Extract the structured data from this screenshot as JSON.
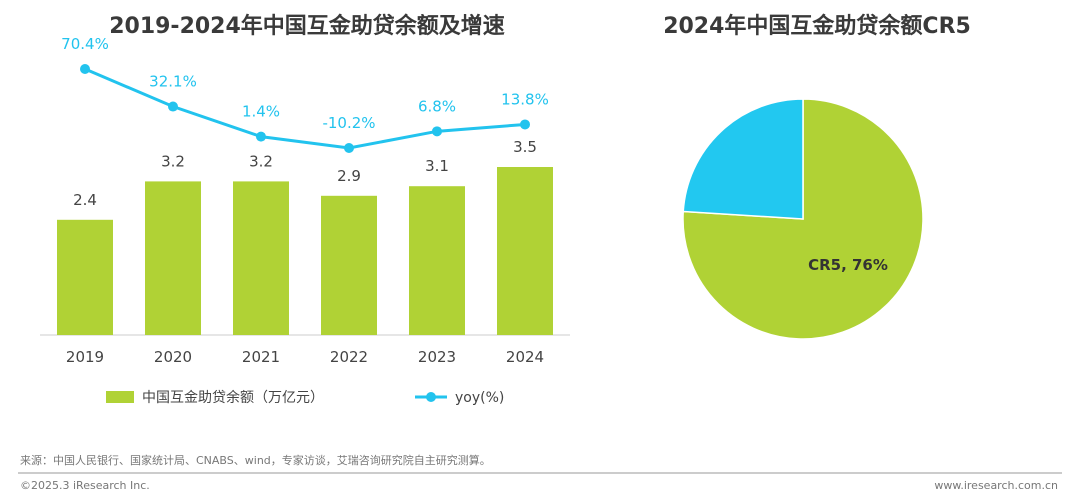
{
  "chart_data": [
    {
      "type": "bar+line",
      "title": "2019-2024年中国互金助贷余额及增速",
      "categories": [
        "2019",
        "2020",
        "2021",
        "2022",
        "2023",
        "2024"
      ],
      "series": [
        {
          "name": "中国互金助贷余额（万亿元）",
          "type": "bar",
          "values": [
            2.4,
            3.2,
            3.2,
            2.9,
            3.1,
            3.5
          ],
          "labels": [
            "2.4",
            "3.2",
            "3.2",
            "2.9",
            "3.1",
            "3.5"
          ],
          "color": "#b0d235"
        },
        {
          "name": "yoy(%)",
          "type": "line",
          "values": [
            70.4,
            32.1,
            1.4,
            -10.2,
            6.8,
            13.8
          ],
          "labels": [
            "70.4%",
            "32.1%",
            "1.4%",
            "-10.2%",
            "6.8%",
            "13.8%"
          ],
          "color": "#22c3ee"
        }
      ],
      "legend": "bottom"
    },
    {
      "type": "pie",
      "title": "2024年中国互金助贷余额CR5",
      "slices": [
        {
          "label": "CR5, 76%",
          "value": 76,
          "color": "#b0d235"
        },
        {
          "label": "",
          "value": 24,
          "color": "#22c8f0"
        }
      ]
    }
  ],
  "footer": {
    "source": "来源：中国人民银行、国家统计局、CNABS、wind，专家访谈，艾瑞咨询研究院自主研究测算。",
    "copyright": "©2025.3 iResearch Inc.",
    "url": "www.iresearch.com.cn"
  }
}
